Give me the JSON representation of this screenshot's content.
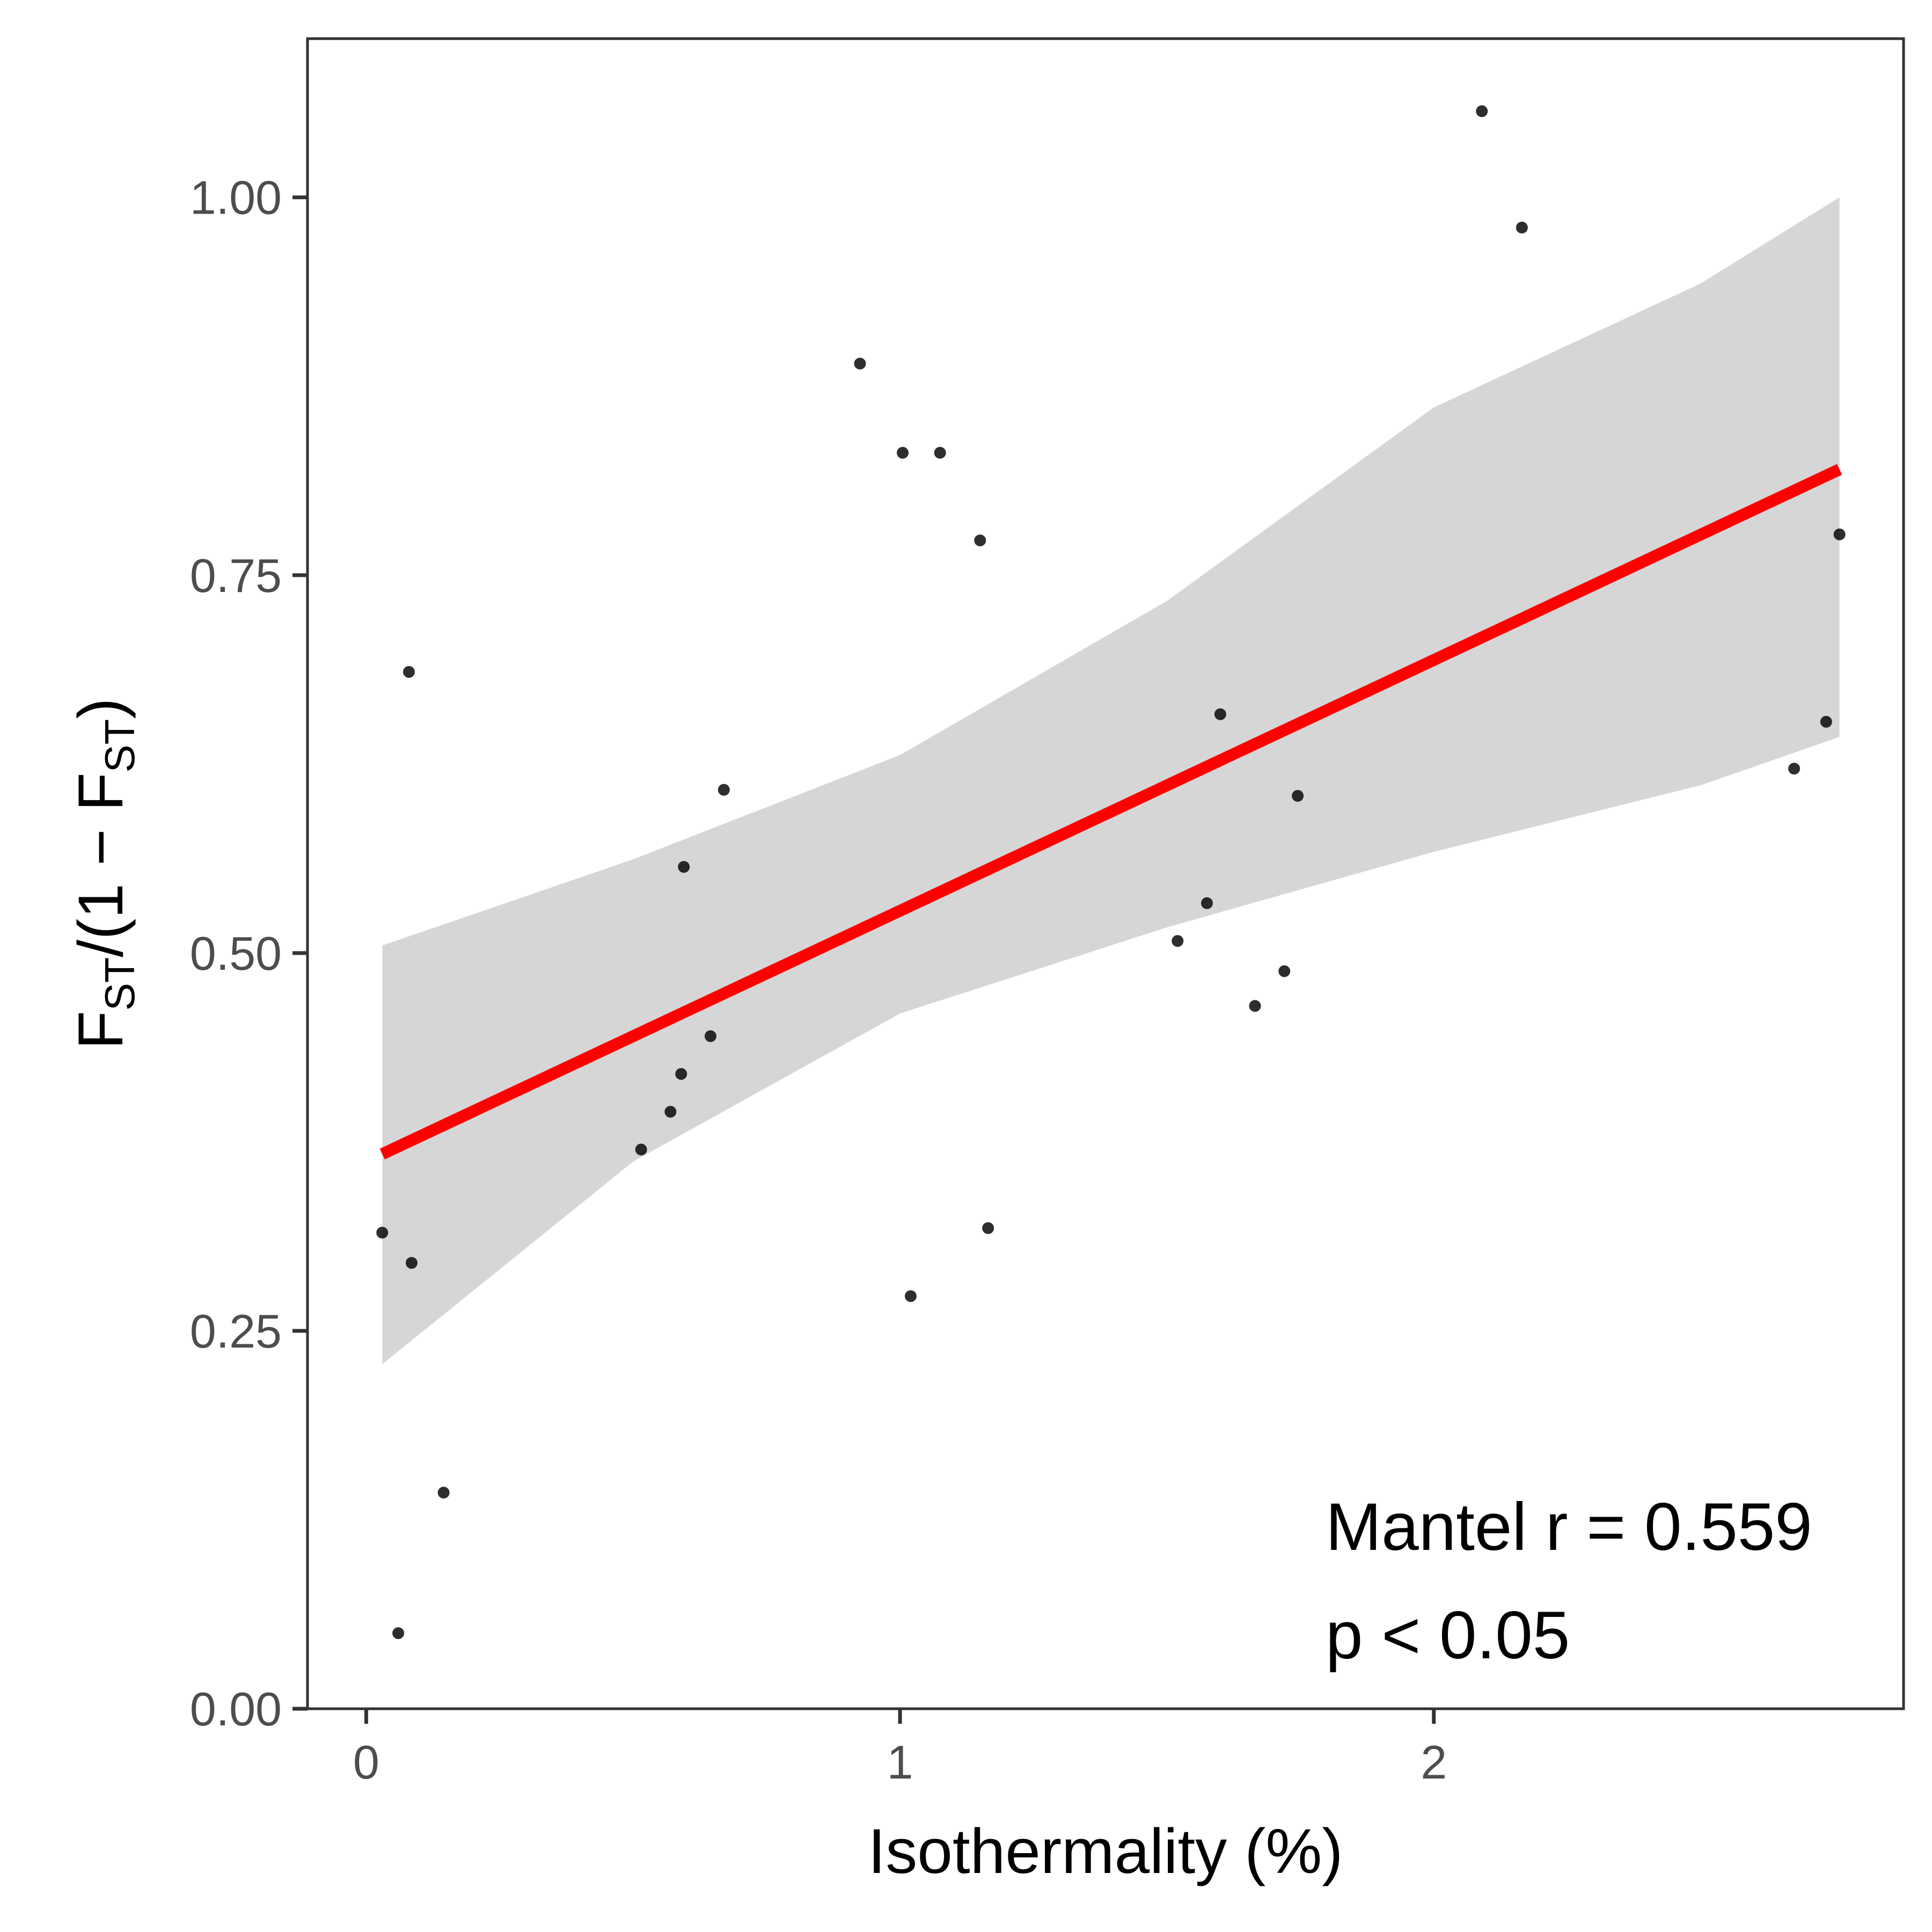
{
  "chart_data": {
    "type": "scatter",
    "title": "",
    "xlabel": "Isothermality (%)",
    "ylabel": {
      "main": "F",
      "sub": "ST",
      "mid": "/(1 − F",
      "sub2": "ST",
      "end": ")"
    },
    "xlim": [
      -0.11,
      2.88
    ],
    "ylim": [
      0.0,
      1.105
    ],
    "x_ticks": [
      0,
      1,
      2
    ],
    "x_tick_labels": [
      "0",
      "1",
      "2"
    ],
    "y_ticks": [
      0.0,
      0.25,
      0.5,
      0.75,
      1.0
    ],
    "y_tick_labels": [
      "0.00",
      "0.25",
      "0.50",
      "0.75",
      "1.00"
    ],
    "grid": false,
    "colors": {
      "points": "#000000",
      "fit_line": "#ff0000",
      "confidence_band": "#d6d6d6",
      "panel_border": "#333333"
    },
    "points": [
      {
        "x": 0.03,
        "y": 0.315
      },
      {
        "x": 0.06,
        "y": 0.05
      },
      {
        "x": 0.08,
        "y": 0.686
      },
      {
        "x": 0.085,
        "y": 0.295
      },
      {
        "x": 0.145,
        "y": 0.143
      },
      {
        "x": 0.515,
        "y": 0.37
      },
      {
        "x": 0.57,
        "y": 0.395
      },
      {
        "x": 0.59,
        "y": 0.42
      },
      {
        "x": 0.595,
        "y": 0.557
      },
      {
        "x": 0.645,
        "y": 0.445
      },
      {
        "x": 0.67,
        "y": 0.608
      },
      {
        "x": 0.925,
        "y": 0.89
      },
      {
        "x": 1.005,
        "y": 0.831
      },
      {
        "x": 1.02,
        "y": 0.273
      },
      {
        "x": 1.075,
        "y": 0.831
      },
      {
        "x": 1.15,
        "y": 0.773
      },
      {
        "x": 1.165,
        "y": 0.318
      },
      {
        "x": 1.52,
        "y": 0.508
      },
      {
        "x": 1.575,
        "y": 0.533
      },
      {
        "x": 1.6,
        "y": 0.658
      },
      {
        "x": 1.665,
        "y": 0.465
      },
      {
        "x": 1.72,
        "y": 0.488
      },
      {
        "x": 1.745,
        "y": 0.604
      },
      {
        "x": 2.09,
        "y": 1.057
      },
      {
        "x": 2.165,
        "y": 0.98
      },
      {
        "x": 2.675,
        "y": 0.622
      },
      {
        "x": 2.735,
        "y": 0.653
      },
      {
        "x": 2.76,
        "y": 0.777
      }
    ],
    "fit": {
      "x": [
        0.03,
        2.76
      ],
      "y": [
        0.367,
        0.82
      ]
    },
    "confidence_band": {
      "x": [
        0.03,
        0.5,
        1.0,
        1.5,
        2.0,
        2.5,
        2.76
      ],
      "upper": [
        0.505,
        0.562,
        0.631,
        0.733,
        0.861,
        0.943,
        1.0
      ],
      "lower": [
        0.228,
        0.362,
        0.46,
        0.517,
        0.567,
        0.611,
        0.643
      ]
    },
    "annotations": [
      "Mantel r = 0.559",
      "p < 0.05"
    ]
  }
}
